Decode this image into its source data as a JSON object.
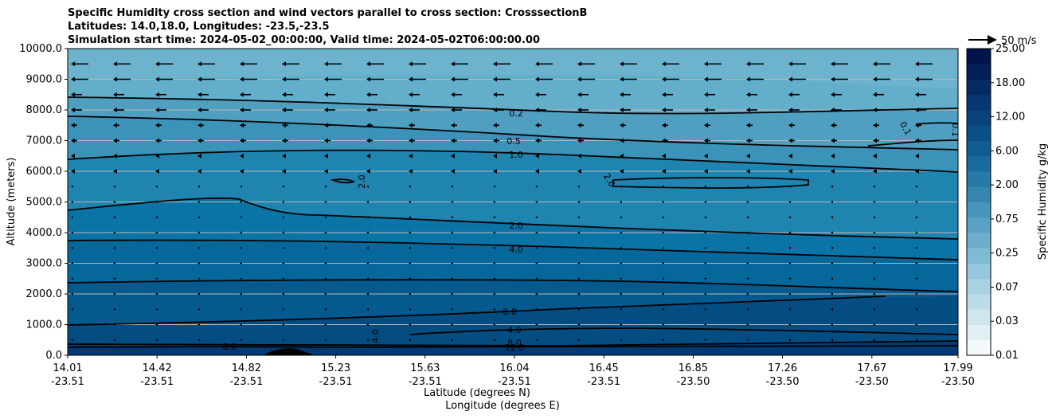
{
  "chart_data": {
    "type": "contourf",
    "title_lines": [
      "Specific Humidity cross section and wind vectors parallel to cross section: CrosssectionB",
      "Latitudes: 14.0,18.0, Longitudes: -23.5,-23.5",
      "Simulation start time: 2024-05-02_00:00:00, Valid time: 2024-05-02T06:00:00.00"
    ],
    "ylabel": "Altitude (meters)",
    "xlabel_lat": "Latitude (degrees N)",
    "xlabel_lon": "Longitude (degrees E)",
    "ylim": [
      0,
      10000
    ],
    "yticks": [
      "0.0",
      "1000.0",
      "2000.0",
      "3000.0",
      "4000.0",
      "5000.0",
      "6000.0",
      "7000.0",
      "8000.0",
      "9000.0",
      "10000.0"
    ],
    "xticks_lat": [
      "14.01",
      "14.42",
      "14.82",
      "15.23",
      "15.63",
      "16.04",
      "16.45",
      "16.85",
      "17.26",
      "17.67",
      "17.99"
    ],
    "xticks_lon": [
      "-23.51",
      "-23.51",
      "-23.51",
      "-23.51",
      "-23.51",
      "-23.51",
      "-23.51",
      "-23.50",
      "-23.50",
      "-23.50",
      "-23.50"
    ],
    "colorbar": {
      "label": "Specific Humidity g/kg",
      "ticks": [
        "0.01",
        "0.03",
        "0.07",
        "0.25",
        "0.75",
        "2.00",
        "6.00",
        "12.00",
        "18.00",
        "25.00"
      ]
    },
    "quiver_key": "50 m/s",
    "contour_labels": [
      "0.2",
      "0.5",
      "1.0",
      "0.1",
      "0.1",
      "2.0",
      "2.0",
      "2.0",
      "4.0",
      "8.0",
      "4.0",
      "4.0",
      "8.0",
      "8.0",
      "12.0"
    ]
  }
}
